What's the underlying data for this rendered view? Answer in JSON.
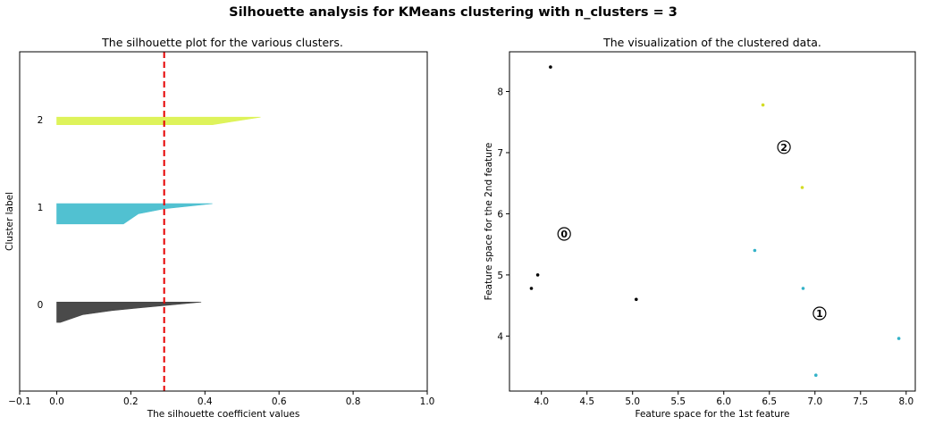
{
  "suptitle": "Silhouette analysis for KMeans clustering with n_clusters = 3",
  "chart_data": [
    {
      "type": "area",
      "title": "The silhouette plot for the various clusters.",
      "xlabel": "The silhouette coefficient values",
      "ylabel": "Cluster label",
      "xlim": [
        -0.1,
        1.0
      ],
      "ylim": [
        0,
        40
      ],
      "xticks": [
        -0.1,
        0.0,
        0.2,
        0.4,
        0.6,
        0.8,
        1.0
      ],
      "xtick_labels": [
        "−0.1",
        "0.0",
        "0.2",
        "0.4",
        "0.6",
        "0.8",
        "1.0"
      ],
      "average_silhouette_score": 0.29,
      "clusters": [
        {
          "label": "0",
          "color": "#444444",
          "y_range": [
            8.1,
            10.5
          ],
          "shape": [
            [
              0.0,
              8.1
            ],
            [
              0.0,
              10.5
            ],
            [
              0.39,
              10.5
            ],
            [
              0.32,
              10.2
            ],
            [
              0.22,
              9.8
            ],
            [
              0.15,
              9.5
            ],
            [
              0.07,
              9.0
            ],
            [
              0.01,
              8.1
            ]
          ],
          "label_y": 10.2
        },
        {
          "label": "1",
          "color": "#4bbfcf",
          "y_range": [
            19.7,
            22.1
          ],
          "shape": [
            [
              0.0,
              19.7
            ],
            [
              0.0,
              22.1
            ],
            [
              0.42,
              22.1
            ],
            [
              0.29,
              21.5
            ],
            [
              0.22,
              20.9
            ],
            [
              0.18,
              19.7
            ]
          ],
          "label_y": 21.7
        },
        {
          "label": "2",
          "color": "#ddf356",
          "y_range": [
            31.4,
            32.3
          ],
          "shape": [
            [
              0.0,
              31.4
            ],
            [
              0.0,
              32.3
            ],
            [
              0.55,
              32.3
            ],
            [
              0.42,
              31.4
            ]
          ],
          "label_y": 32.0
        }
      ]
    },
    {
      "type": "scatter",
      "title": "The visualization of the clustered data.",
      "xlabel": "Feature space for the 1st feature",
      "ylabel": "Feature space for the 2nd feature",
      "xlim": [
        3.65,
        8.1
      ],
      "ylim": [
        3.1,
        8.65
      ],
      "xticks": [
        4.0,
        4.5,
        5.0,
        5.5,
        6.0,
        6.5,
        7.0,
        7.5,
        8.0
      ],
      "xtick_labels": [
        "4.0",
        "4.5",
        "5.0",
        "5.5",
        "6.0",
        "6.5",
        "7.0",
        "7.5",
        "8.0"
      ],
      "yticks": [
        4,
        5,
        6,
        7,
        8
      ],
      "ytick_labels": [
        "4",
        "5",
        "6",
        "7",
        "8"
      ],
      "points": [
        {
          "x": 4.1,
          "y": 8.4,
          "cluster": 0
        },
        {
          "x": 3.96,
          "y": 5.0,
          "cluster": 0
        },
        {
          "x": 3.89,
          "y": 4.78,
          "cluster": 0
        },
        {
          "x": 5.04,
          "y": 4.6,
          "cluster": 0
        },
        {
          "x": 6.43,
          "y": 7.78,
          "cluster": 2
        },
        {
          "x": 6.86,
          "y": 6.43,
          "cluster": 2
        },
        {
          "x": 6.34,
          "y": 5.4,
          "cluster": 1
        },
        {
          "x": 6.87,
          "y": 4.78,
          "cluster": 1
        },
        {
          "x": 7.92,
          "y": 3.96,
          "cluster": 1
        },
        {
          "x": 7.01,
          "y": 3.36,
          "cluster": 1
        }
      ],
      "cluster_colors": [
        "#000000",
        "#33b2c8",
        "#d3dc24"
      ],
      "centers": [
        {
          "label": "0",
          "x": 4.25,
          "y": 5.67
        },
        {
          "label": "1",
          "x": 7.05,
          "y": 4.37
        },
        {
          "label": "2",
          "x": 6.66,
          "y": 7.09
        }
      ]
    }
  ]
}
